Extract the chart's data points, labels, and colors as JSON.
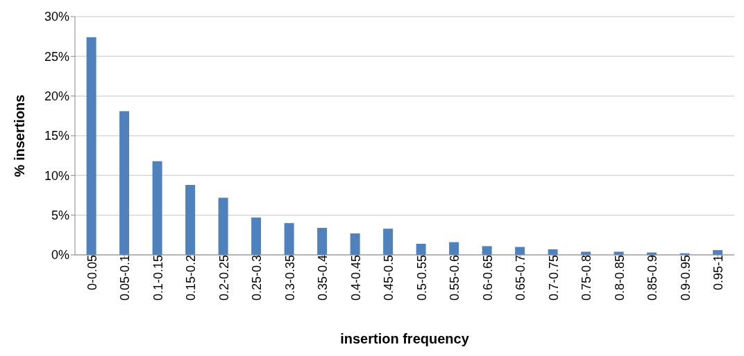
{
  "chart_data": {
    "type": "bar",
    "xlabel": "insertion frequency",
    "ylabel": "% insertions",
    "categories": [
      "0-0.05",
      "0.05-0.1",
      "0.1-0.15",
      "0.15-0.2",
      "0.2-0.25",
      "0.25-0.3",
      "0.3-0.35",
      "0.35-0.4",
      "0.4-0.45",
      "0.45-0.5",
      "0.5-0.55",
      "0.55-0.6",
      "0.6-0.65",
      "0.65-0.7",
      "0.7-0.75",
      "0.75-0.8",
      "0.8-0.85",
      "0.85-0.9",
      "0.9-0.95",
      "0.95-1"
    ],
    "values": [
      27.4,
      18.1,
      11.8,
      8.8,
      7.2,
      4.7,
      4.0,
      3.4,
      2.7,
      3.3,
      1.4,
      1.6,
      1.1,
      1.0,
      0.7,
      0.4,
      0.4,
      0.3,
      0.2,
      0.6
    ],
    "color": "#4f81bd",
    "ylim": [
      0,
      30
    ],
    "yticks": [
      {
        "value": 0,
        "label": "0%"
      },
      {
        "value": 5,
        "label": "5%"
      },
      {
        "value": 10,
        "label": "10%"
      },
      {
        "value": 15,
        "label": "15%"
      },
      {
        "value": 20,
        "label": "20%"
      },
      {
        "value": 25,
        "label": "25%"
      },
      {
        "value": 30,
        "label": "30%"
      }
    ],
    "grid": "y",
    "legend": false
  }
}
